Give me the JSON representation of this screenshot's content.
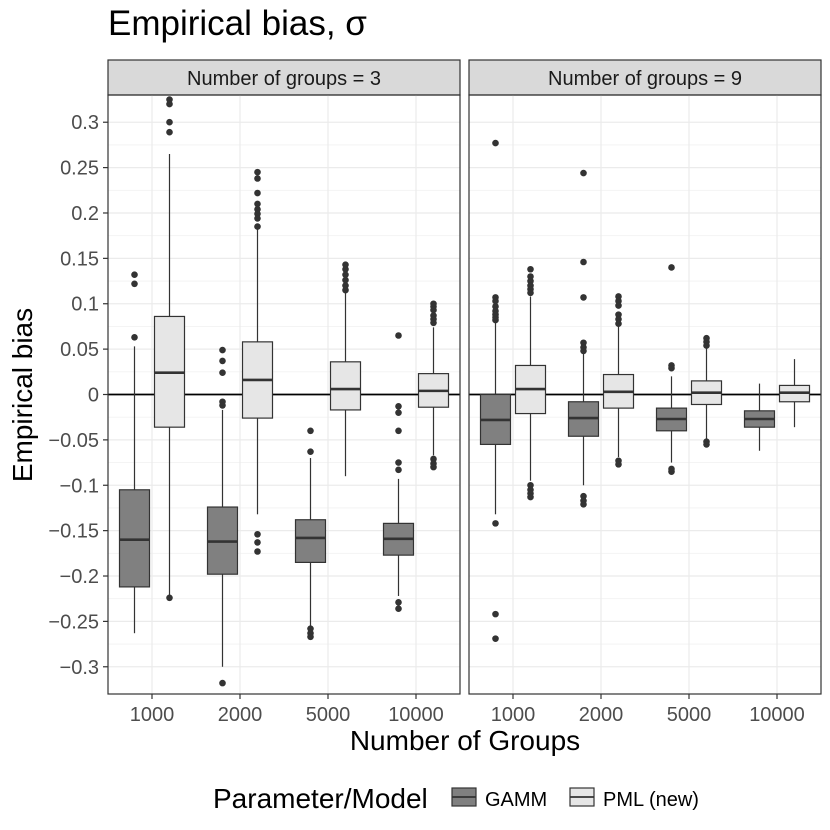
{
  "title": "Empirical bias, σ",
  "ylabel": "Empirical bias",
  "xlabel": "Number of Groups",
  "legend": {
    "title": "Parameter/Model",
    "items": [
      {
        "label": "GAMM",
        "color": "#808080"
      },
      {
        "label": "PML (new)",
        "color": "#e6e6e6"
      }
    ]
  },
  "chart_data": {
    "type": "box",
    "ylim": [
      -0.33,
      0.33
    ],
    "yticks": [
      0.3,
      0.25,
      0.2,
      0.15,
      0.1,
      0.05,
      0,
      -0.05,
      -0.1,
      -0.15,
      -0.2,
      -0.25,
      -0.3
    ],
    "ytick_labels": [
      "0.3",
      "0.25",
      "0.2",
      "0.15",
      "0.1",
      "0.05",
      "0",
      "−0.05",
      "−0.1",
      "−0.15",
      "−0.2",
      "−0.25",
      "−0.3"
    ],
    "categories": [
      "1000",
      "2000",
      "5000",
      "10000"
    ],
    "reference_line": 0,
    "panels": [
      {
        "strip": "Number of groups = 3",
        "boxes": [
          {
            "cat": 0,
            "series": "GAMM",
            "q1": -0.212,
            "median": -0.16,
            "q3": -0.105,
            "wlo": -0.263,
            "whi": 0.053,
            "outliers": [
              0.132,
              0.122,
              0.063
            ]
          },
          {
            "cat": 0,
            "series": "PML (new)",
            "q1": -0.036,
            "median": 0.024,
            "q3": 0.086,
            "wlo": -0.222,
            "whi": 0.265,
            "outliers": [
              0.325,
              0.32,
              0.3,
              0.289,
              -0.224
            ]
          },
          {
            "cat": 1,
            "series": "GAMM",
            "q1": -0.198,
            "median": -0.162,
            "q3": -0.124,
            "wlo": -0.3,
            "whi": -0.017,
            "outliers": [
              0.049,
              0.037,
              0.024,
              -0.008,
              -0.012,
              -0.318
            ]
          },
          {
            "cat": 1,
            "series": "PML (new)",
            "q1": -0.026,
            "median": 0.016,
            "q3": 0.058,
            "wlo": -0.132,
            "whi": 0.183,
            "outliers": [
              0.245,
              0.238,
              0.222,
              0.21,
              0.204,
              0.199,
              0.194,
              0.185,
              -0.154,
              -0.163,
              -0.173
            ]
          },
          {
            "cat": 2,
            "series": "GAMM",
            "q1": -0.185,
            "median": -0.158,
            "q3": -0.138,
            "wlo": -0.255,
            "whi": -0.07,
            "outliers": [
              -0.04,
              -0.063,
              -0.258,
              -0.263,
              -0.267
            ]
          },
          {
            "cat": 2,
            "series": "PML (new)",
            "q1": -0.017,
            "median": 0.006,
            "q3": 0.036,
            "wlo": -0.09,
            "whi": 0.113,
            "outliers": [
              0.143,
              0.138,
              0.132,
              0.126,
              0.12,
              0.115
            ]
          },
          {
            "cat": 3,
            "series": "GAMM",
            "q1": -0.177,
            "median": -0.159,
            "q3": -0.142,
            "wlo": -0.222,
            "whi": -0.093,
            "outliers": [
              0.065,
              -0.013,
              -0.02,
              -0.04,
              -0.075,
              -0.083,
              -0.229,
              -0.236
            ]
          },
          {
            "cat": 3,
            "series": "PML (new)",
            "q1": -0.014,
            "median": 0.004,
            "q3": 0.023,
            "wlo": -0.067,
            "whi": 0.074,
            "outliers": [
              0.1,
              0.097,
              0.093,
              0.087,
              0.083,
              0.079,
              -0.071,
              -0.076,
              -0.08
            ]
          }
        ]
      },
      {
        "strip": "Number of groups = 9",
        "boxes": [
          {
            "cat": 0,
            "series": "GAMM",
            "q1": -0.055,
            "median": -0.028,
            "q3": 0.0,
            "wlo": -0.132,
            "whi": 0.08,
            "outliers": [
              0.277,
              0.107,
              0.103,
              0.097,
              0.092,
              0.088,
              0.085,
              0.082,
              -0.142,
              -0.242,
              -0.269
            ]
          },
          {
            "cat": 0,
            "series": "PML (new)",
            "q1": -0.021,
            "median": 0.006,
            "q3": 0.032,
            "wlo": -0.095,
            "whi": 0.108,
            "outliers": [
              0.138,
              0.13,
              0.125,
              0.12,
              0.116,
              0.112,
              -0.1,
              -0.105,
              -0.109,
              -0.113
            ]
          },
          {
            "cat": 1,
            "series": "GAMM",
            "q1": -0.046,
            "median": -0.026,
            "q3": -0.008,
            "wlo": -0.1,
            "whi": 0.048,
            "outliers": [
              0.244,
              0.146,
              0.107,
              0.057,
              0.052,
              0.048,
              -0.112,
              -0.117,
              -0.121
            ]
          },
          {
            "cat": 1,
            "series": "PML (new)",
            "q1": -0.015,
            "median": 0.003,
            "q3": 0.022,
            "wlo": -0.069,
            "whi": 0.077,
            "outliers": [
              0.108,
              0.103,
              0.098,
              0.088,
              0.083,
              0.078,
              -0.073,
              -0.077
            ]
          },
          {
            "cat": 2,
            "series": "GAMM",
            "q1": -0.04,
            "median": -0.027,
            "q3": -0.015,
            "wlo": -0.075,
            "whi": 0.02,
            "outliers": [
              0.14,
              0.032,
              0.029,
              -0.082,
              -0.085
            ]
          },
          {
            "cat": 2,
            "series": "PML (new)",
            "q1": -0.011,
            "median": 0.002,
            "q3": 0.015,
            "wlo": -0.05,
            "whi": 0.054,
            "outliers": [
              0.062,
              0.058,
              0.054,
              -0.052,
              -0.055
            ]
          },
          {
            "cat": 3,
            "series": "GAMM",
            "q1": -0.036,
            "median": -0.027,
            "q3": -0.018,
            "wlo": -0.062,
            "whi": 0.012,
            "outliers": []
          },
          {
            "cat": 3,
            "series": "PML (new)",
            "q1": -0.008,
            "median": 0.002,
            "q3": 0.01,
            "wlo": -0.036,
            "whi": 0.039,
            "outliers": []
          }
        ]
      }
    ]
  }
}
